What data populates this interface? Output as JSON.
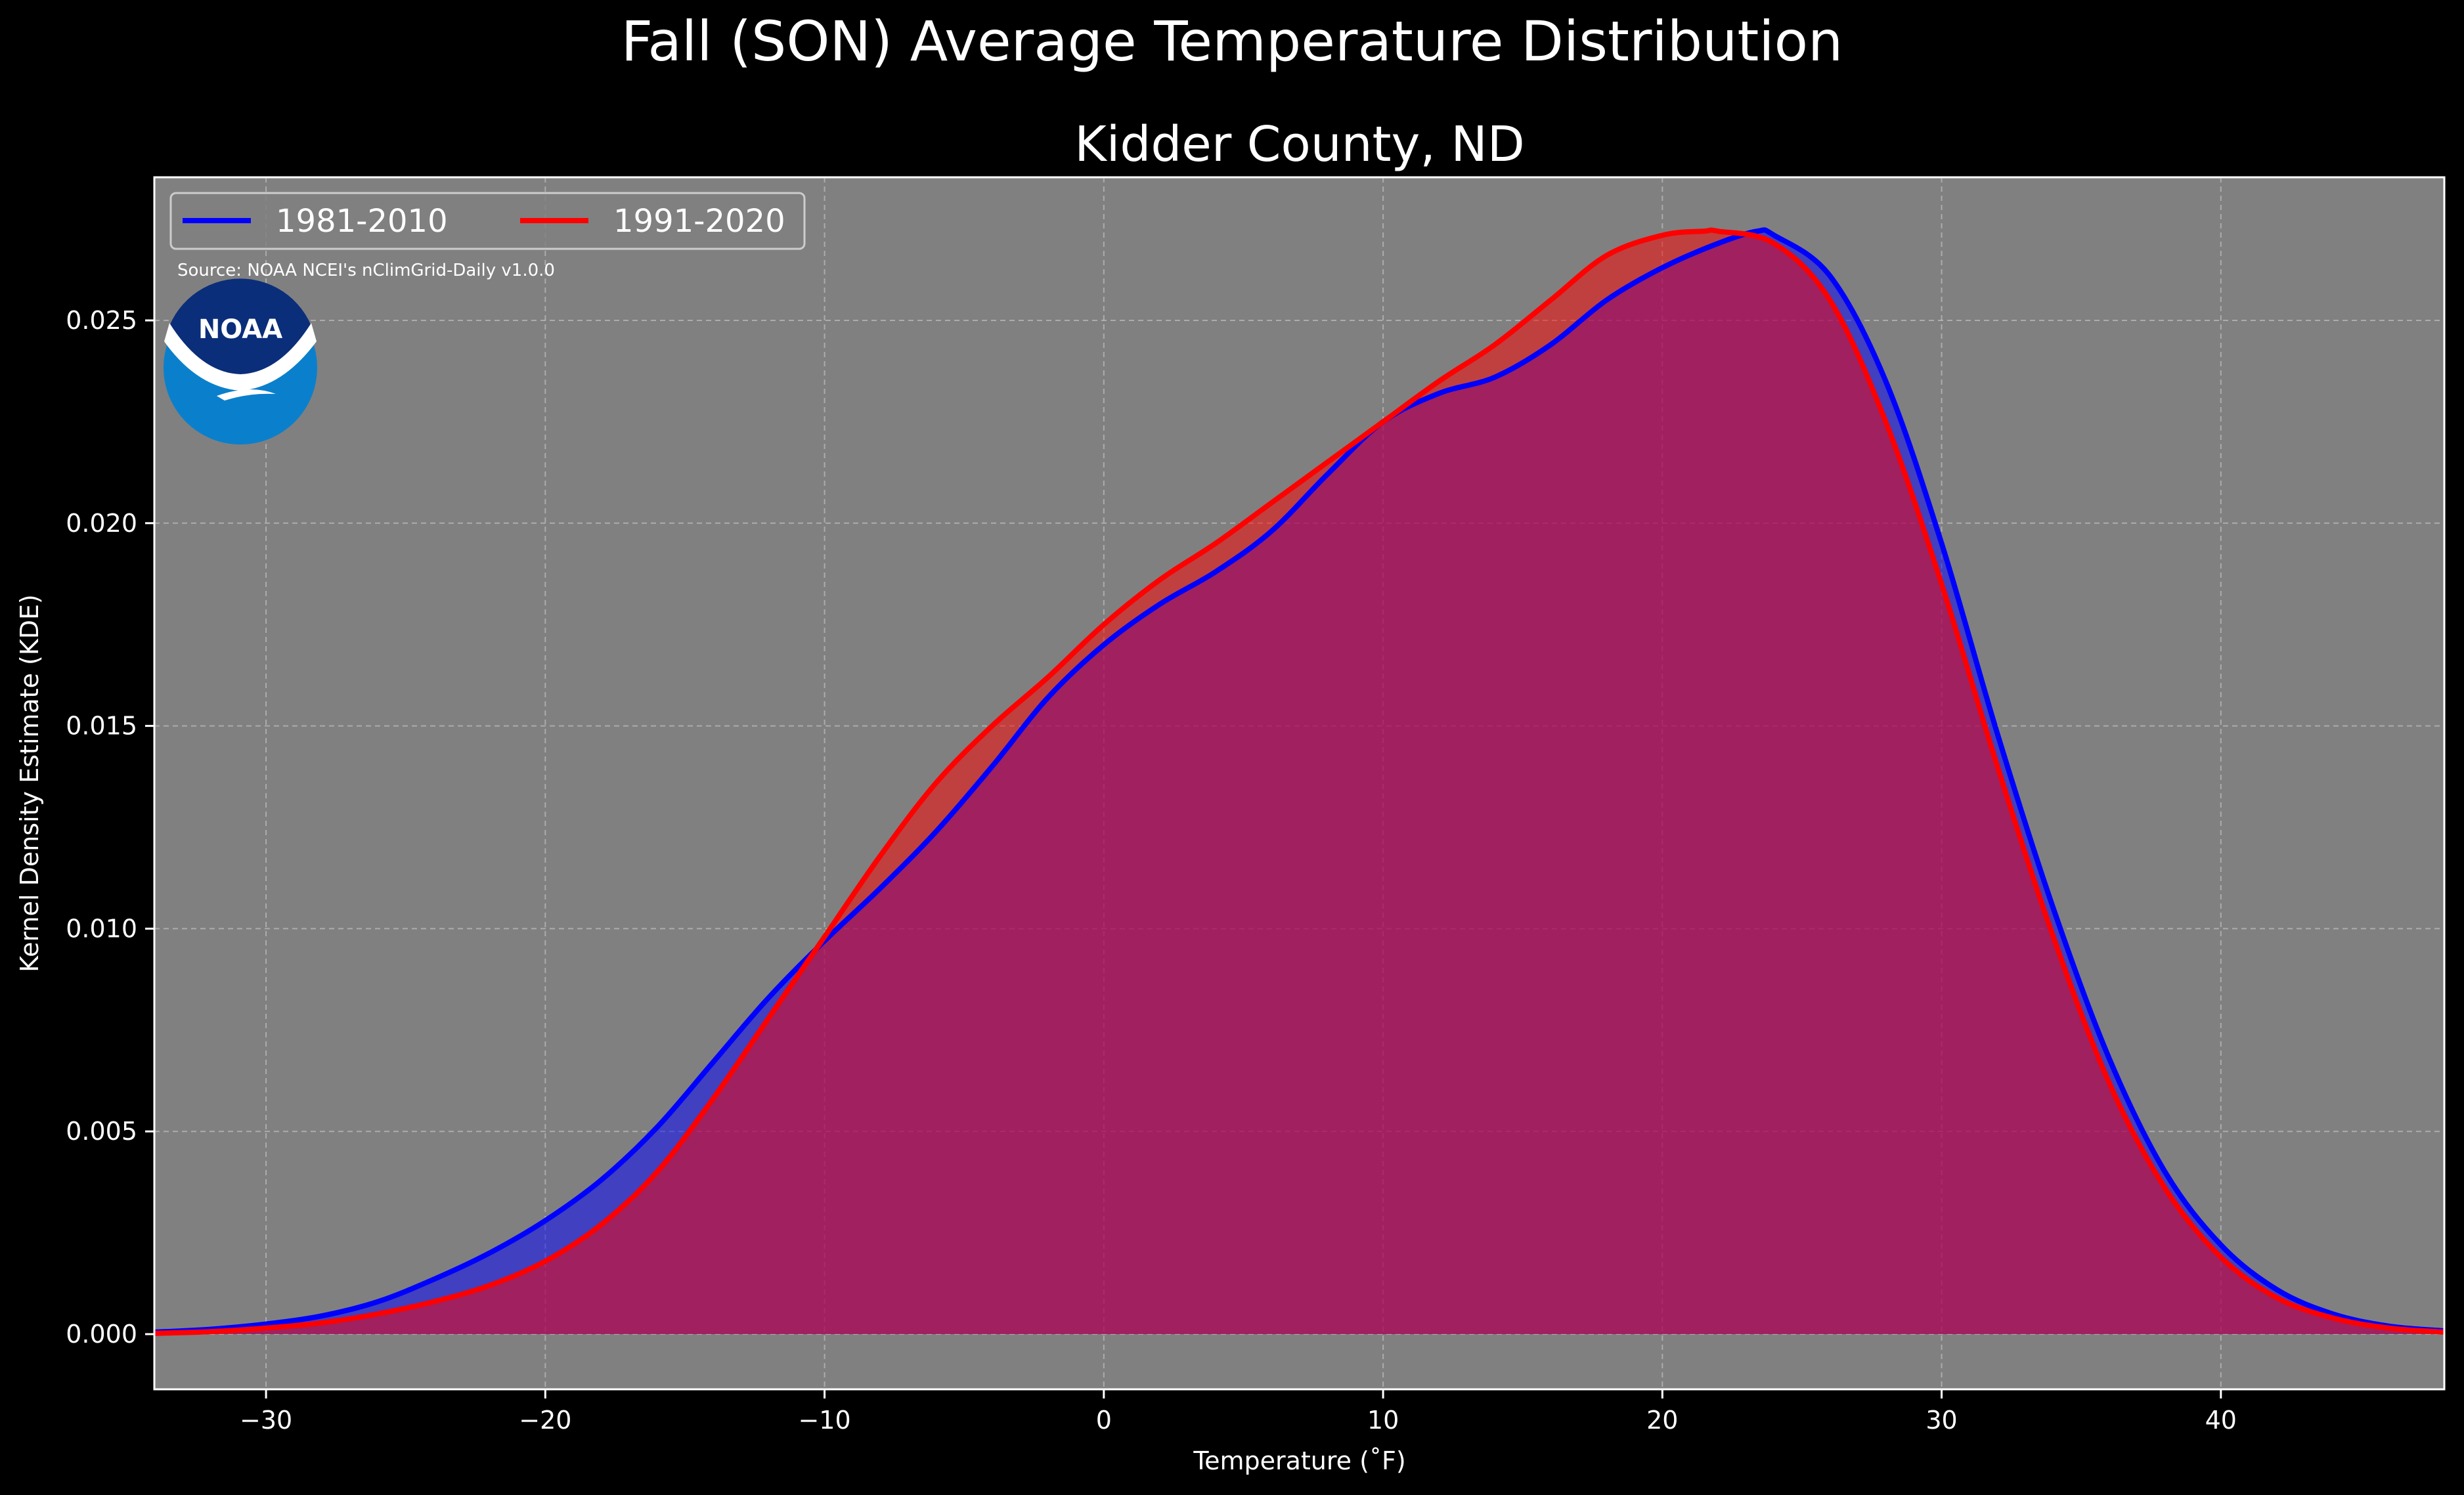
{
  "chart_data": {
    "type": "area",
    "suptitle": "Fall (SON) Average Temperature Distribution",
    "title": "Kidder County, ND",
    "xlabel": "Temperature ($^\\circ$F)",
    "ylabel": "Kernel Density Estimate (KDE)",
    "xlim": [
      -34,
      48
    ],
    "ylim": [
      -0.00136,
      0.02853
    ],
    "x_ticks": [
      -30,
      -20,
      -10,
      0,
      10,
      20,
      30,
      40
    ],
    "x_tick_labels": [
      "−30",
      "−20",
      "−10",
      "0",
      "10",
      "20",
      "30",
      "40"
    ],
    "y_ticks": [
      0.0,
      0.005,
      0.01,
      0.015,
      0.02,
      0.025
    ],
    "y_tick_labels": [
      "0.000",
      "0.005",
      "0.010",
      "0.015",
      "0.020",
      "0.025"
    ],
    "grid": true,
    "legend_position": "top-left",
    "annotation": "Source: NOAA NCEI's nClimGrid-Daily v1.0.0",
    "logo_text": "NOAA",
    "background_color": "#808080",
    "series": [
      {
        "name": "1981-2010",
        "color": "#0000ff",
        "fill_color": "#0000ff",
        "x": [
          -34,
          -32,
          -30,
          -28,
          -26,
          -24,
          -22,
          -20,
          -18,
          -16,
          -14,
          -12,
          -10,
          -8,
          -6,
          -4,
          -2,
          0,
          2,
          4,
          6,
          8,
          10,
          12,
          14,
          16,
          18,
          20,
          22,
          23.4,
          24,
          26,
          28,
          30,
          32,
          34,
          36,
          38,
          40,
          42,
          44,
          46,
          48
        ],
        "y": [
          5e-05,
          0.00012,
          0.00025,
          0.00045,
          0.0008,
          0.00135,
          0.002,
          0.0028,
          0.0038,
          0.0051,
          0.0067,
          0.0083,
          0.0097,
          0.011,
          0.0124,
          0.014,
          0.0157,
          0.017,
          0.018,
          0.0188,
          0.0198,
          0.0212,
          0.0225,
          0.0232,
          0.0236,
          0.0244,
          0.0255,
          0.0263,
          0.0269,
          0.0272,
          0.0271,
          0.0261,
          0.0235,
          0.0195,
          0.0148,
          0.0105,
          0.0068,
          0.004,
          0.0022,
          0.0011,
          0.0005,
          0.0002,
          8e-05
        ]
      },
      {
        "name": "1991-2020",
        "color": "#ff0000",
        "fill_color": "#ff0000",
        "x": [
          -34,
          -32,
          -30,
          -28,
          -26,
          -24,
          -22,
          -20,
          -18,
          -16,
          -14,
          -12,
          -10,
          -8,
          -6,
          -4,
          -2,
          0,
          2,
          4,
          6,
          8,
          10,
          12,
          14,
          16,
          18,
          20,
          21.5,
          22,
          24,
          26,
          28,
          30,
          32,
          34,
          36,
          38,
          40,
          42,
          44,
          46,
          48
        ],
        "y": [
          2e-05,
          6e-05,
          0.00015,
          0.00028,
          0.0005,
          0.0008,
          0.0012,
          0.0018,
          0.0027,
          0.004,
          0.0058,
          0.0078,
          0.0098,
          0.0118,
          0.0136,
          0.015,
          0.0162,
          0.0175,
          0.0186,
          0.0195,
          0.0205,
          0.0215,
          0.0225,
          0.0235,
          0.0244,
          0.0255,
          0.0266,
          0.0271,
          0.0272,
          0.0272,
          0.0269,
          0.0255,
          0.0225,
          0.0185,
          0.014,
          0.0098,
          0.0062,
          0.0036,
          0.0019,
          0.0009,
          0.0004,
          0.00015,
          5e-05
        ]
      }
    ]
  }
}
